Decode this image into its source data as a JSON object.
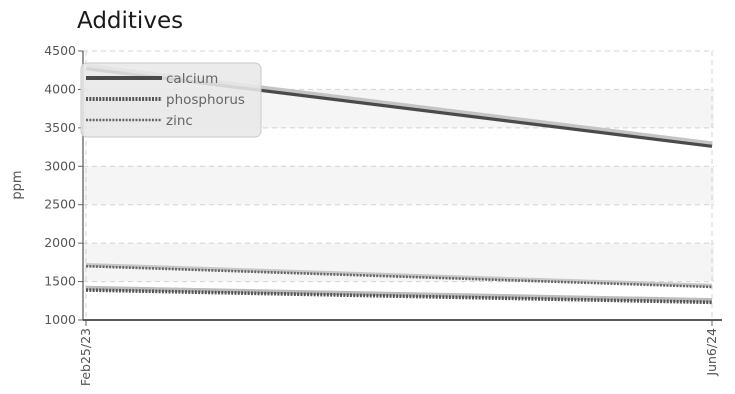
{
  "chart_data": {
    "type": "line",
    "title": "Additives",
    "ylabel": "ppm",
    "xlabel": "",
    "x": [
      "Feb25/23",
      "Jun6/24"
    ],
    "x_tick_labels": [
      "Feb25/23",
      "Jun6/24"
    ],
    "ylim": [
      1000,
      4500
    ],
    "y_ticks": [
      1000,
      1500,
      2000,
      2500,
      3000,
      3500,
      4000,
      4500
    ],
    "grid": true,
    "legend_position": "top-left",
    "series": [
      {
        "name": "calcium",
        "values": [
          4270,
          3260
        ],
        "color": "#4a4a4a",
        "style": "solid"
      },
      {
        "name": "phosphorus",
        "values": [
          1390,
          1230
        ],
        "color": "#555555",
        "style": "dotted"
      },
      {
        "name": "zinc",
        "values": [
          1700,
          1430
        ],
        "color": "#666666",
        "style": "dotted-thin"
      }
    ]
  }
}
